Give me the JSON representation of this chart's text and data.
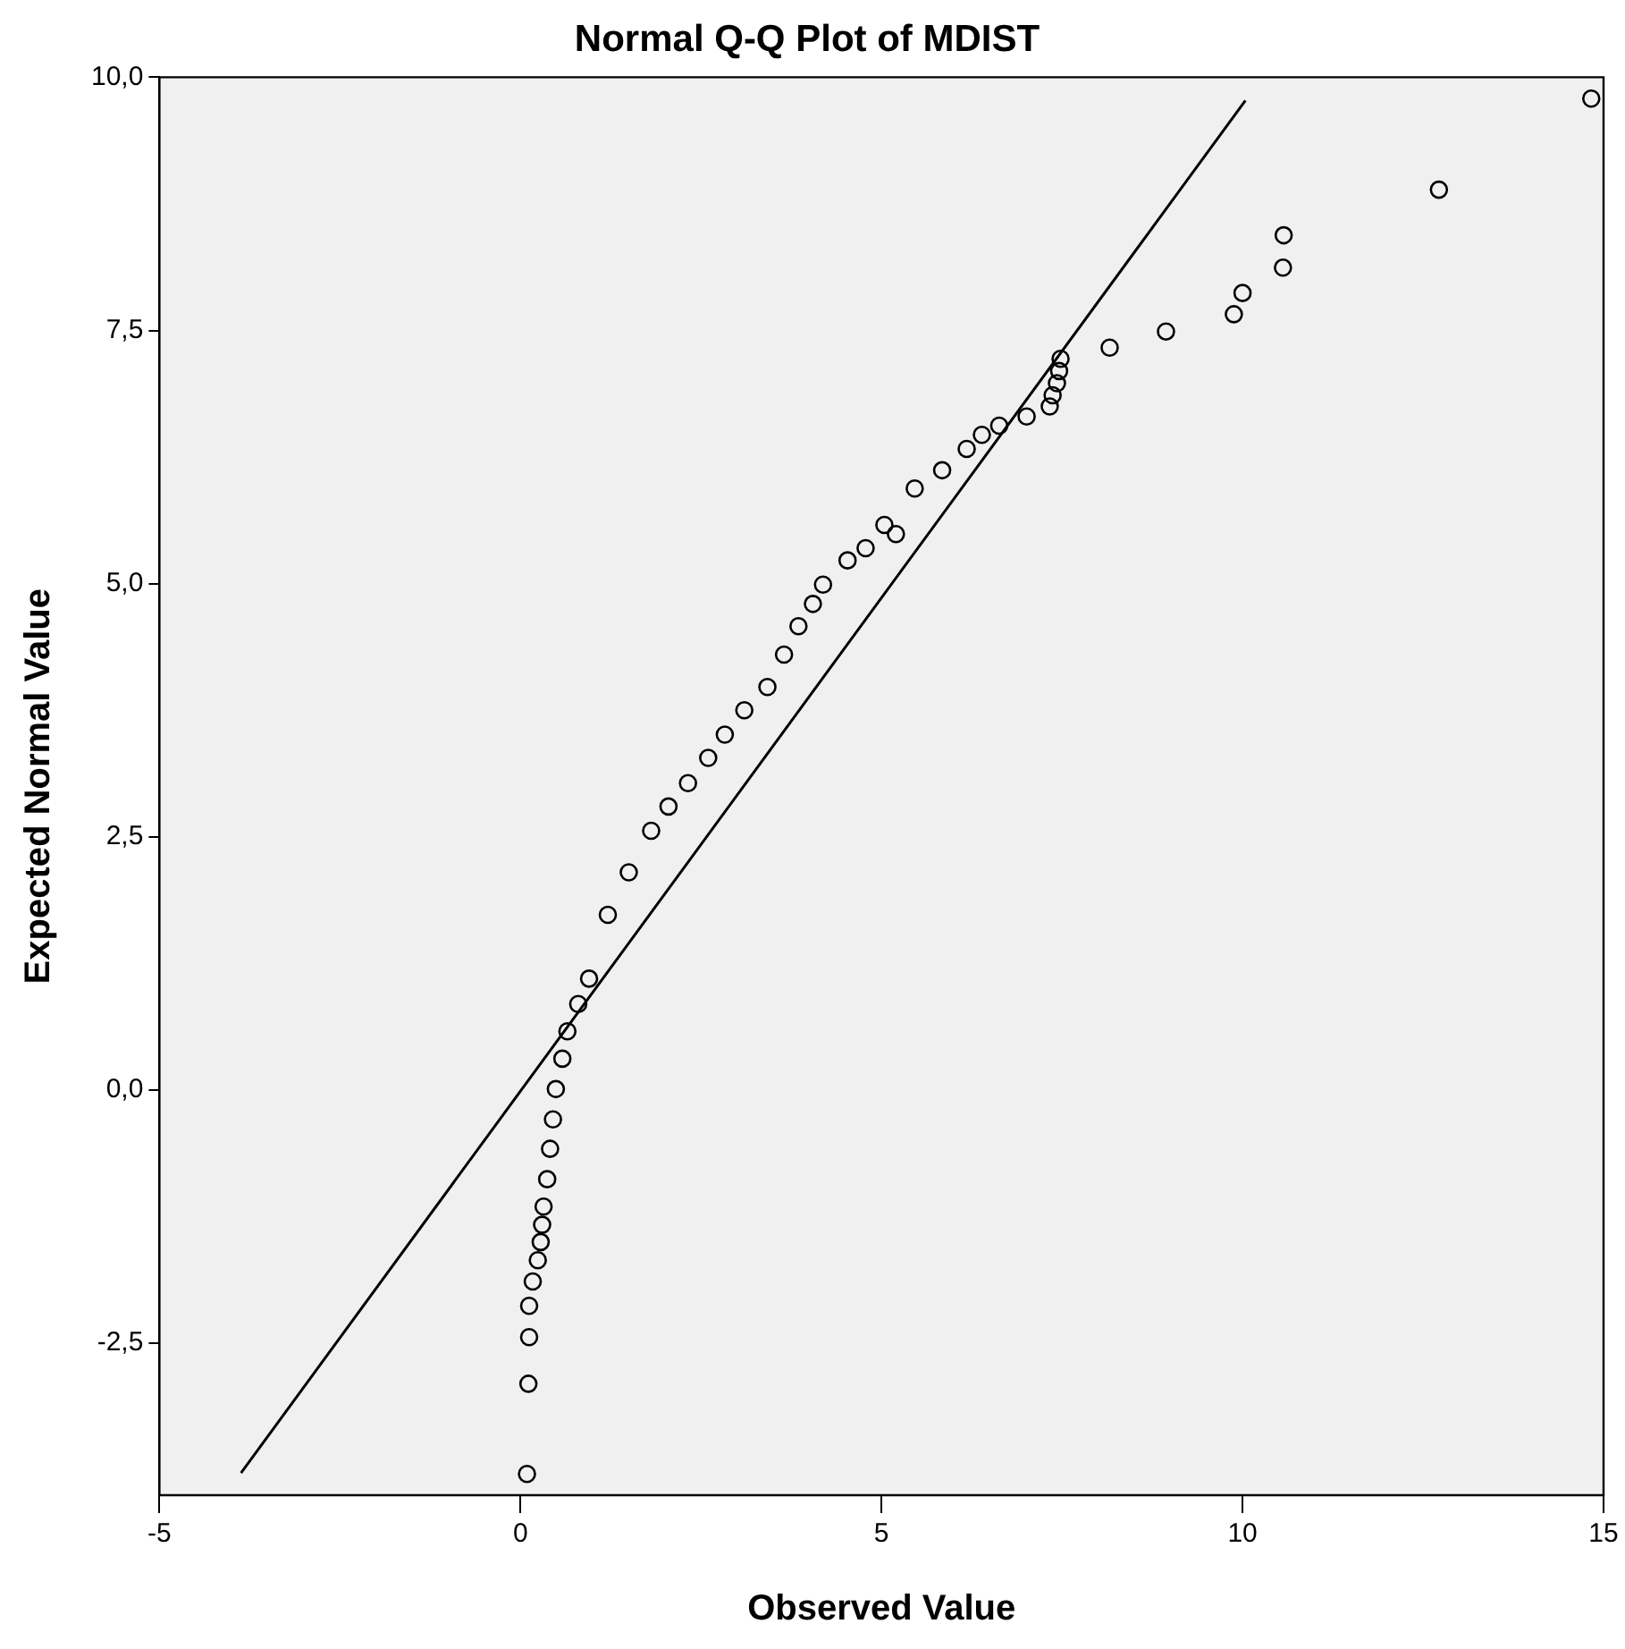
{
  "chart_data": {
    "type": "scatter",
    "title": "Normal Q-Q Plot of MDIST",
    "xlabel": "Observed Value",
    "ylabel": "Expected Normal Value",
    "grid": false,
    "legend": false,
    "xlim": [
      -5,
      15
    ],
    "xticks": [
      -5,
      0,
      5,
      10,
      15
    ],
    "ylim": [
      -4,
      10
    ],
    "yticks": [
      {
        "value": -2.5,
        "label": "-2,5"
      },
      {
        "value": 0,
        "label": "0,0"
      },
      {
        "value": 2.5,
        "label": "2,5"
      },
      {
        "value": 5,
        "label": "5,0"
      },
      {
        "value": 7.5,
        "label": "7,5"
      },
      {
        "value": 10,
        "label": "10,0"
      }
    ],
    "series": [
      {
        "marker": "circle",
        "color": "#000000",
        "x": [
          0.09,
          0.11,
          0.12,
          0.12,
          0.17,
          0.24,
          0.28,
          0.3,
          0.32,
          0.37,
          0.41,
          0.45,
          0.49,
          0.58,
          0.65,
          0.8,
          0.95,
          1.21,
          1.5,
          1.81,
          2.05,
          2.32,
          2.6,
          2.83,
          3.1,
          3.42,
          3.65,
          3.85,
          4.05,
          4.19,
          4.53,
          4.78,
          5.04,
          5.2,
          5.46,
          5.84,
          6.18,
          6.39,
          6.63,
          7.01,
          7.33,
          7.37,
          7.43,
          7.46,
          7.48,
          8.16,
          8.94,
          9.88,
          10.0,
          10.56,
          10.57,
          12.72,
          14.83
        ],
        "values": [
          -3.79,
          -2.9,
          -2.44,
          -2.13,
          -1.89,
          -1.68,
          -1.5,
          -1.33,
          -1.15,
          -0.88,
          -0.58,
          -0.29,
          0.01,
          0.31,
          0.58,
          0.85,
          1.1,
          1.73,
          2.15,
          2.56,
          2.8,
          3.03,
          3.28,
          3.51,
          3.75,
          3.98,
          4.3,
          4.58,
          4.8,
          4.99,
          5.23,
          5.35,
          5.58,
          5.49,
          5.94,
          6.12,
          6.33,
          6.47,
          6.56,
          6.65,
          6.75,
          6.86,
          6.98,
          7.1,
          7.22,
          7.33,
          7.49,
          7.66,
          7.87,
          8.12,
          8.44,
          8.89,
          9.79
        ]
      },
      {
        "type": "line",
        "marker": "none",
        "color": "#000000",
        "x": [
          -3.87,
          10.04
        ],
        "values": [
          -3.78,
          9.77
        ]
      }
    ]
  }
}
